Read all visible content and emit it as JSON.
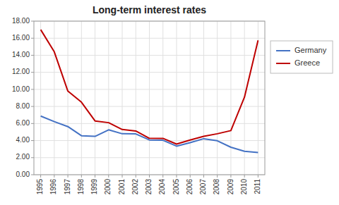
{
  "chart_data": {
    "type": "line",
    "title": "Long-term interest rates",
    "x": [
      1995,
      1996,
      1997,
      1998,
      1999,
      2000,
      2001,
      2002,
      2003,
      2004,
      2005,
      2006,
      2007,
      2008,
      2009,
      2010,
      2011
    ],
    "series": [
      {
        "name": "Germany",
        "color": "#4472C4",
        "values": [
          6.87,
          6.22,
          5.64,
          4.57,
          4.49,
          5.26,
          4.8,
          4.78,
          4.07,
          4.04,
          3.35,
          3.76,
          4.22,
          3.98,
          3.22,
          2.74,
          2.61
        ]
      },
      {
        "name": "Greece",
        "color": "#BE0000",
        "values": [
          17.0,
          14.4,
          9.8,
          8.5,
          6.3,
          6.1,
          5.3,
          5.12,
          4.27,
          4.26,
          3.59,
          4.07,
          4.5,
          4.8,
          5.17,
          9.09,
          15.75
        ]
      }
    ],
    "xlim": [
      1994.5,
      2011.5
    ],
    "xticks": [
      1995,
      1996,
      1997,
      1998,
      1999,
      2000,
      2001,
      2002,
      2003,
      2004,
      2005,
      2006,
      2007,
      2008,
      2009,
      2010,
      2011
    ],
    "ylim": [
      0,
      18
    ],
    "yticks": [
      {
        "value": 0,
        "label": "0.00"
      },
      {
        "value": 2,
        "label": "2.00"
      },
      {
        "value": 4,
        "label": "4.00"
      },
      {
        "value": 6,
        "label": "6.00"
      },
      {
        "value": 8,
        "label": "8.00"
      },
      {
        "value": 10,
        "label": "10.00"
      },
      {
        "value": 12,
        "label": "12.00"
      },
      {
        "value": 14,
        "label": "14.00"
      },
      {
        "value": 16,
        "label": "16.00"
      },
      {
        "value": 18,
        "label": "18.00"
      }
    ],
    "grid": true,
    "legend": "right"
  }
}
